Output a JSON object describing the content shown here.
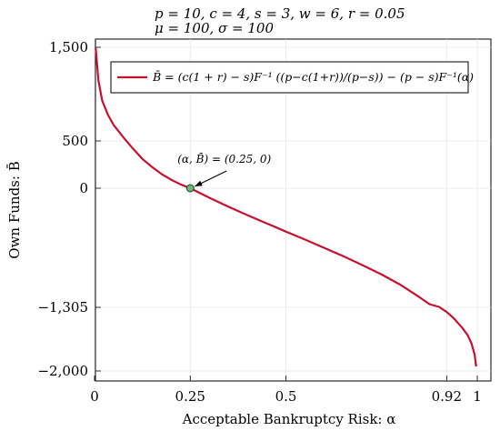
{
  "chart_data": {
    "type": "line",
    "title_lines": [
      "p = 10, c = 4, s = 3, w = 6, r = 0.05",
      "μ = 100, σ = 100"
    ],
    "xlabel": "Acceptable Bankruptcy Risk: α",
    "ylabel": "Own Funds: B̄",
    "xlim": [
      0,
      1
    ],
    "ylim": [
      -2000,
      1500
    ],
    "x_ticks": [
      0,
      0.25,
      0.5,
      0.92,
      1
    ],
    "x_tick_labels": [
      "0",
      "0.25",
      "0.5",
      "0.92",
      "1"
    ],
    "y_ticks": [
      1500,
      500,
      0,
      -1305,
      -2000
    ],
    "y_tick_labels": [
      "1,500",
      "500",
      "0",
      "−1,305",
      "−2,000"
    ],
    "grid": true,
    "legend_position": "top-right",
    "series": [
      {
        "name": "B̄ = (c(1 + r) − s)F⁻¹ ((p−c(1+r))/(p−s)) − (p − s)F⁻¹(α)",
        "color": "#c8102e",
        "x": [
          0.003,
          0.01,
          0.02,
          0.035,
          0.05,
          0.075,
          0.1,
          0.125,
          0.15,
          0.175,
          0.2,
          0.225,
          0.25,
          0.3,
          0.35,
          0.4,
          0.45,
          0.5,
          0.55,
          0.6,
          0.65,
          0.7,
          0.75,
          0.8,
          0.85,
          0.875,
          0.9,
          0.92,
          0.94,
          0.96,
          0.975,
          0.985,
          0.993,
          0.997
        ],
        "y": [
          1490,
          1150,
          930,
          780,
          670,
          540,
          420,
          310,
          225,
          150,
          90,
          40,
          0,
          -105,
          -203,
          -296,
          -387,
          -475,
          -563,
          -653,
          -745,
          -843,
          -945,
          -1060,
          -1196,
          -1270,
          -1300,
          -1356,
          -1430,
          -1525,
          -1610,
          -1700,
          -1820,
          -1950
        ]
      }
    ],
    "highlight_point": {
      "x": 0.25,
      "y": 0,
      "color": "#66bb6a"
    },
    "annotation": "(α, B̄) = (0.25, 0)"
  }
}
